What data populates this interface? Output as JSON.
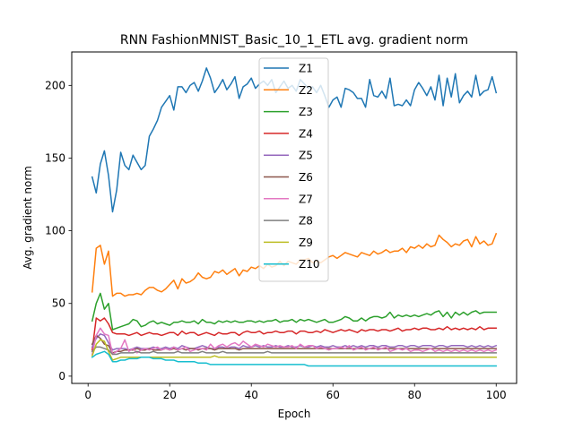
{
  "chart_data": {
    "type": "line",
    "title": "RNN FashionMNIST_Basic_10_1_ETL avg. gradient norm",
    "xlabel": "Epoch",
    "ylabel": "Avg. gradient norm",
    "xlim": [
      -4,
      105
    ],
    "ylim": [
      -5,
      223
    ],
    "xticks": [
      0,
      20,
      40,
      60,
      80,
      100
    ],
    "yticks": [
      0,
      50,
      100,
      150,
      200
    ],
    "legend_position": "upper-center",
    "grid": false,
    "x": [
      1,
      2,
      3,
      4,
      5,
      6,
      7,
      8,
      9,
      10,
      11,
      12,
      13,
      14,
      15,
      16,
      17,
      18,
      19,
      20,
      21,
      22,
      23,
      24,
      25,
      26,
      27,
      28,
      29,
      30,
      31,
      32,
      33,
      34,
      35,
      36,
      37,
      38,
      39,
      40,
      41,
      42,
      43,
      44,
      45,
      46,
      47,
      48,
      49,
      50,
      51,
      52,
      53,
      54,
      55,
      56,
      57,
      58,
      59,
      60,
      61,
      62,
      63,
      64,
      65,
      66,
      67,
      68,
      69,
      70,
      71,
      72,
      73,
      74,
      75,
      76,
      77,
      78,
      79,
      80,
      81,
      82,
      83,
      84,
      85,
      86,
      87,
      88,
      89,
      90,
      91,
      92,
      93,
      94,
      95,
      96,
      97,
      98,
      99,
      100
    ],
    "series": [
      {
        "name": "Z1",
        "color": "#1f77b4",
        "values": [
          137,
          126,
          146,
          155,
          138,
          113,
          128,
          154,
          145,
          142,
          152,
          147,
          142,
          145,
          165,
          170,
          176,
          185,
          189,
          193,
          183,
          199,
          199,
          195,
          200,
          202,
          196,
          203,
          212,
          205,
          195,
          199,
          204,
          197,
          201,
          206,
          191,
          199,
          201,
          205,
          198,
          201,
          203,
          200,
          204,
          195,
          199,
          203,
          198,
          200,
          196,
          204,
          201,
          198,
          199,
          195,
          200,
          193,
          185,
          190,
          192,
          185,
          198,
          197,
          195,
          191,
          191,
          185,
          204,
          193,
          192,
          196,
          191,
          205,
          186,
          187,
          186,
          190,
          186,
          197,
          202,
          198,
          193,
          199,
          190,
          207,
          186,
          205,
          192,
          208,
          188,
          193,
          196,
          192,
          207,
          193,
          196,
          197,
          206,
          195
        ]
      },
      {
        "name": "Z2",
        "color": "#ff7f0e",
        "values": [
          58,
          88,
          90,
          77,
          86,
          55,
          57,
          57,
          55,
          56,
          56,
          57,
          56,
          59,
          61,
          61,
          59,
          58,
          60,
          63,
          66,
          60,
          67,
          64,
          65,
          67,
          71,
          68,
          67,
          68,
          72,
          71,
          73,
          70,
          72,
          74,
          69,
          73,
          72,
          75,
          74,
          76,
          74,
          77,
          75,
          76,
          79,
          76,
          79,
          78,
          77,
          80,
          80,
          81,
          78,
          79,
          78,
          80,
          82,
          83,
          81,
          83,
          85,
          84,
          83,
          82,
          85,
          84,
          83,
          86,
          84,
          85,
          87,
          85,
          86,
          86,
          88,
          85,
          89,
          88,
          90,
          88,
          91,
          89,
          90,
          97,
          94,
          92,
          89,
          91,
          90,
          93,
          94,
          89,
          96,
          91,
          93,
          90,
          91,
          98
        ]
      },
      {
        "name": "Z3",
        "color": "#2ca02c",
        "values": [
          38,
          50,
          57,
          46,
          50,
          32,
          33,
          34,
          35,
          36,
          39,
          38,
          34,
          35,
          37,
          38,
          36,
          37,
          36,
          35,
          37,
          37,
          38,
          37,
          37,
          38,
          36,
          39,
          37,
          37,
          36,
          38,
          37,
          38,
          37,
          38,
          37,
          37,
          38,
          38,
          37,
          38,
          37,
          38,
          38,
          39,
          37,
          38,
          38,
          39,
          37,
          39,
          38,
          39,
          38,
          37,
          38,
          39,
          37,
          37,
          38,
          39,
          41,
          40,
          38,
          38,
          40,
          38,
          40,
          41,
          41,
          40,
          41,
          44,
          40,
          42,
          41,
          42,
          41,
          42,
          41,
          42,
          43,
          42,
          44,
          45,
          41,
          44,
          40,
          44,
          42,
          44,
          42,
          44,
          45,
          43,
          44,
          44,
          44,
          44
        ]
      },
      {
        "name": "Z4",
        "color": "#d62728",
        "values": [
          18,
          40,
          38,
          40,
          36,
          30,
          29,
          29,
          29,
          28,
          29,
          30,
          28,
          29,
          30,
          29,
          29,
          28,
          29,
          30,
          30,
          28,
          31,
          29,
          30,
          30,
          28,
          29,
          30,
          29,
          28,
          30,
          29,
          29,
          30,
          30,
          28,
          30,
          31,
          30,
          30,
          31,
          29,
          30,
          30,
          31,
          30,
          30,
          31,
          31,
          29,
          31,
          31,
          30,
          30,
          31,
          30,
          32,
          31,
          30,
          31,
          32,
          31,
          32,
          31,
          30,
          32,
          31,
          32,
          32,
          31,
          32,
          32,
          31,
          32,
          33,
          31,
          32,
          32,
          33,
          32,
          33,
          33,
          32,
          32,
          33,
          32,
          34,
          32,
          33,
          32,
          33,
          32,
          33,
          32,
          34,
          32,
          33,
          33,
          33
        ]
      },
      {
        "name": "Z5",
        "color": "#9467bd",
        "values": [
          20,
          26,
          29,
          28,
          23,
          18,
          19,
          19,
          19,
          18,
          19,
          20,
          19,
          19,
          19,
          20,
          19,
          19,
          20,
          19,
          20,
          19,
          21,
          20,
          19,
          19,
          20,
          21,
          20,
          19,
          19,
          20,
          20,
          19,
          20,
          20,
          19,
          21,
          20,
          20,
          21,
          20,
          21,
          20,
          20,
          21,
          20,
          20,
          21,
          20,
          20,
          21,
          20,
          20,
          21,
          20,
          21,
          20,
          20,
          21,
          20,
          20,
          21,
          20,
          21,
          20,
          21,
          20,
          21,
          21,
          20,
          21,
          21,
          20,
          20,
          21,
          21,
          20,
          21,
          21,
          20,
          21,
          21,
          21,
          20,
          21,
          21,
          20,
          21,
          21,
          21,
          21,
          20,
          21,
          20,
          21,
          20,
          21,
          20,
          21
        ]
      },
      {
        "name": "Z6",
        "color": "#8c564b",
        "values": [
          22,
          28,
          26,
          22,
          21,
          16,
          17,
          17,
          18,
          18,
          18,
          19,
          18,
          18,
          19,
          18,
          18,
          18,
          19,
          18,
          19,
          18,
          19,
          18,
          19,
          19,
          18,
          19,
          19,
          19,
          18,
          19,
          19,
          19,
          19,
          19,
          18,
          19,
          19,
          19,
          19,
          19,
          19,
          19,
          19,
          19,
          19,
          19,
          19,
          19,
          19,
          19,
          19,
          19,
          19,
          19,
          19,
          19,
          19,
          19,
          19,
          19,
          19,
          19,
          19,
          19,
          19,
          19,
          19,
          19,
          19,
          19,
          19,
          19,
          19,
          19,
          19,
          19,
          19,
          19,
          19,
          19,
          19,
          19,
          19,
          19,
          19,
          19,
          19,
          19,
          19,
          19,
          19,
          19,
          19,
          19,
          19,
          19,
          19,
          19
        ]
      },
      {
        "name": "Z7",
        "color": "#e377c2",
        "values": [
          15,
          28,
          33,
          29,
          28,
          15,
          17,
          19,
          25,
          17,
          19,
          16,
          18,
          19,
          18,
          19,
          20,
          18,
          19,
          18,
          20,
          18,
          19,
          20,
          17,
          18,
          19,
          19,
          18,
          22,
          19,
          21,
          22,
          20,
          22,
          23,
          21,
          24,
          22,
          20,
          22,
          21,
          20,
          22,
          21,
          20,
          21,
          20,
          20,
          21,
          19,
          22,
          20,
          21,
          21,
          19,
          20,
          19,
          18,
          19,
          19,
          20,
          19,
          21,
          18,
          19,
          20,
          18,
          19,
          20,
          18,
          19,
          20,
          17,
          18,
          19,
          18,
          19,
          17,
          18,
          18,
          17,
          18,
          19,
          17,
          18,
          17,
          18,
          17,
          18,
          17,
          18,
          17,
          18,
          17,
          18,
          17,
          18,
          17,
          18
        ]
      },
      {
        "name": "Z8",
        "color": "#7f7f7f",
        "values": [
          17,
          20,
          20,
          19,
          18,
          15,
          15,
          16,
          16,
          16,
          16,
          17,
          16,
          16,
          16,
          17,
          16,
          16,
          16,
          16,
          16,
          17,
          16,
          16,
          16,
          16,
          16,
          17,
          16,
          16,
          16,
          16,
          17,
          16,
          16,
          16,
          16,
          16,
          16,
          16,
          16,
          16,
          16,
          17,
          16,
          16,
          16,
          16,
          16,
          16,
          16,
          16,
          16,
          16,
          16,
          16,
          16,
          16,
          16,
          16,
          16,
          16,
          16,
          16,
          16,
          16,
          16,
          16,
          16,
          16,
          16,
          16,
          16,
          16,
          16,
          16,
          16,
          16,
          16,
          16,
          16,
          16,
          16,
          16,
          16,
          16,
          16,
          16,
          16,
          16,
          16,
          16,
          16,
          16,
          16,
          16,
          16,
          16,
          16,
          16
        ]
      },
      {
        "name": "Z9",
        "color": "#bcbd22",
        "values": [
          14,
          22,
          25,
          24,
          17,
          11,
          12,
          13,
          13,
          13,
          13,
          13,
          13,
          13,
          13,
          13,
          13,
          13,
          13,
          13,
          13,
          13,
          13,
          13,
          13,
          13,
          13,
          13,
          13,
          13,
          14,
          13,
          13,
          13,
          13,
          13,
          13,
          13,
          13,
          13,
          13,
          13,
          13,
          13,
          13,
          13,
          13,
          13,
          13,
          13,
          13,
          13,
          13,
          13,
          13,
          13,
          13,
          13,
          13,
          13,
          13,
          13,
          13,
          13,
          13,
          13,
          13,
          13,
          13,
          13,
          13,
          13,
          13,
          13,
          13,
          13,
          13,
          13,
          13,
          13,
          13,
          13,
          13,
          13,
          13,
          13,
          13,
          13,
          13,
          13,
          13,
          13,
          13,
          13,
          13,
          13,
          13,
          13,
          13,
          13
        ]
      },
      {
        "name": "Z10",
        "color": "#17becf",
        "values": [
          13,
          15,
          16,
          17,
          15,
          10,
          10,
          11,
          11,
          12,
          12,
          12,
          13,
          13,
          13,
          12,
          12,
          12,
          11,
          11,
          11,
          10,
          10,
          10,
          10,
          10,
          9,
          9,
          9,
          8,
          8,
          8,
          8,
          8,
          8,
          8,
          8,
          8,
          8,
          8,
          8,
          8,
          8,
          8,
          8,
          8,
          8,
          8,
          8,
          8,
          8,
          8,
          8,
          7,
          7,
          7,
          7,
          7,
          7,
          7,
          7,
          7,
          7,
          7,
          7,
          7,
          7,
          7,
          7,
          7,
          7,
          7,
          7,
          7,
          7,
          7,
          7,
          7,
          7,
          7,
          7,
          7,
          7,
          7,
          7,
          7,
          7,
          7,
          7,
          7,
          7,
          7,
          7,
          7,
          7,
          7,
          7,
          7,
          7,
          7
        ]
      }
    ]
  }
}
